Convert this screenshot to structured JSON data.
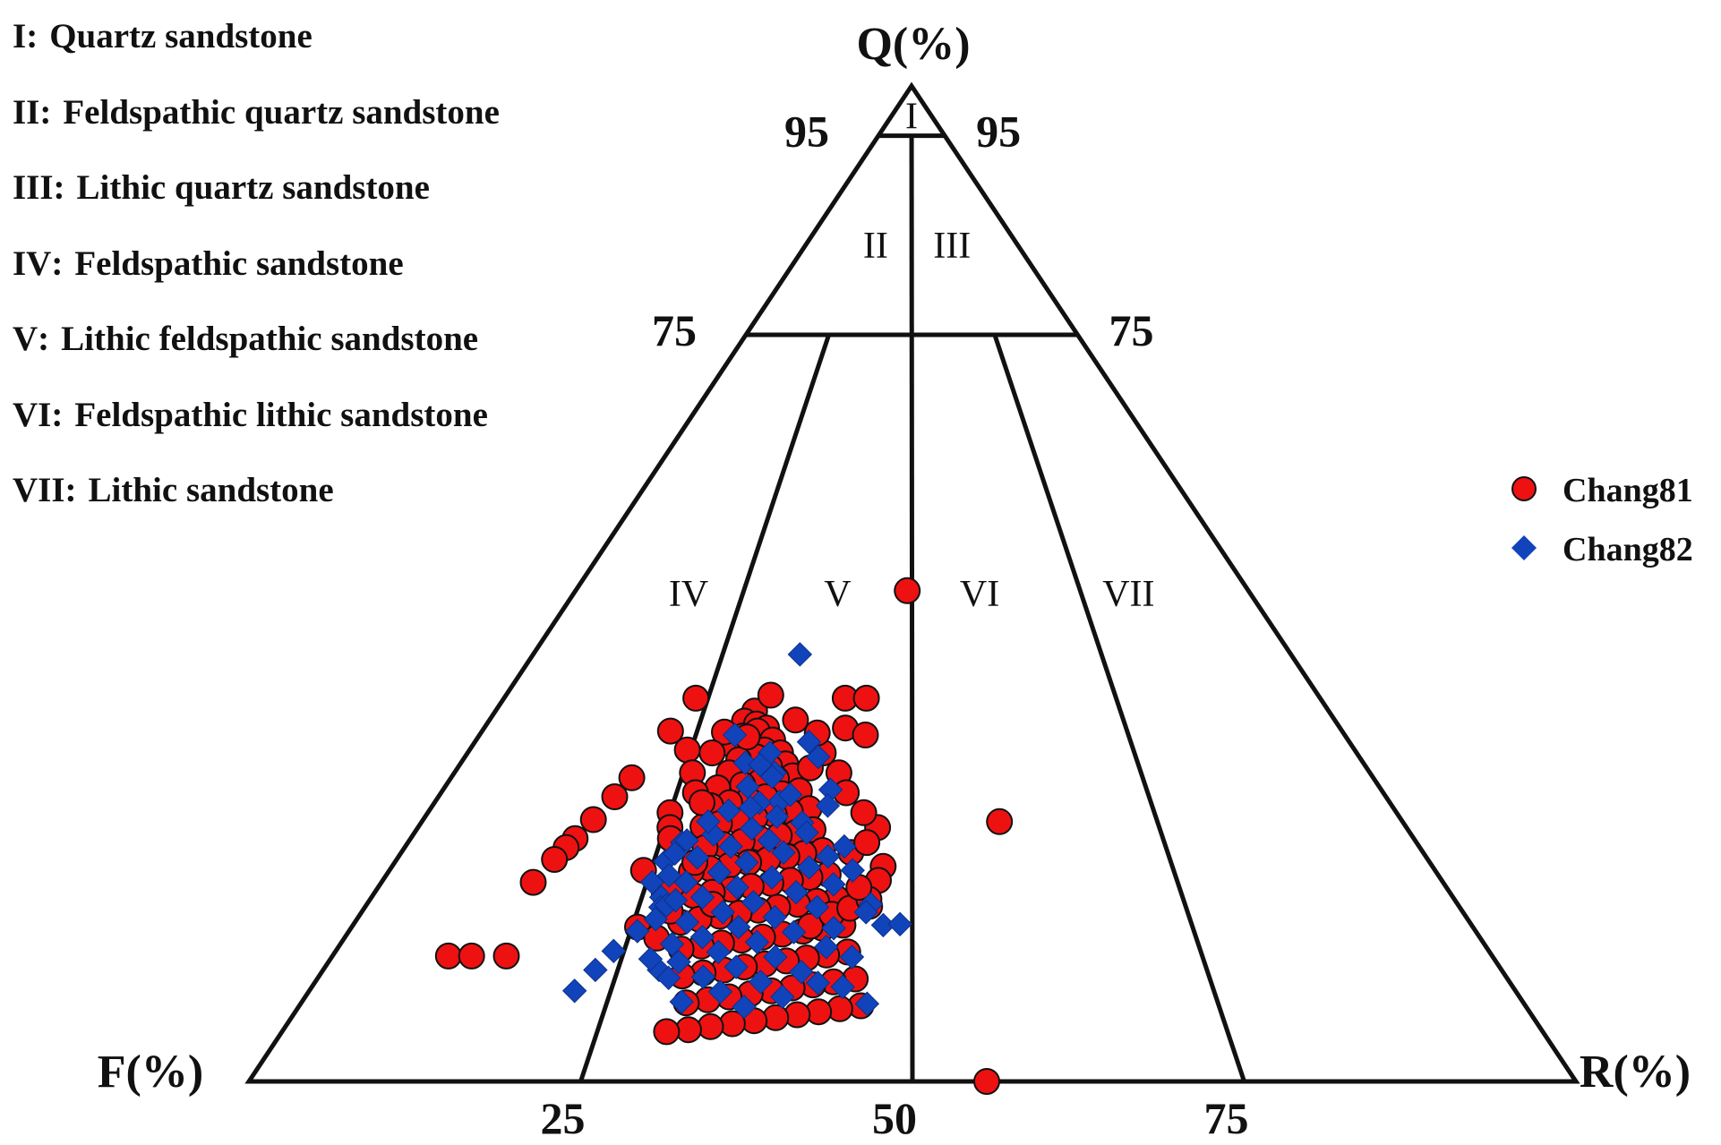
{
  "classification_legend": [
    {
      "code": "I",
      "name": "Quartz sandstone"
    },
    {
      "code": "II",
      "name": "Feldspathic quartz sandstone"
    },
    {
      "code": "III",
      "name": "Lithic quartz sandstone"
    },
    {
      "code": "IV",
      "name": "Feldspathic sandstone"
    },
    {
      "code": "V",
      "name": "Lithic feldspathic sandstone"
    },
    {
      "code": "VI",
      "name": "Feldspathic lithic sandstone"
    },
    {
      "code": "VII",
      "name": "Lithic sandstone"
    }
  ],
  "chart_data": {
    "type": "scatter",
    "subtype": "ternary",
    "title": "",
    "axes": {
      "top": "Q(%)",
      "left": "F(%)",
      "right": "R(%)"
    },
    "q_ticks": [
      {
        "label": "95",
        "value": 95
      },
      {
        "label": "75",
        "value": 75
      }
    ],
    "base_ticks": [
      {
        "label": "25",
        "value": 25
      },
      {
        "label": "50",
        "value": 50
      },
      {
        "label": "75",
        "value": 75
      }
    ],
    "field_labels": [
      {
        "code": "I",
        "q": 97,
        "r": 50
      },
      {
        "code": "II",
        "q": 84,
        "r": 33
      },
      {
        "code": "III",
        "q": 84,
        "r": 69
      },
      {
        "code": "IV",
        "q": 49,
        "r": 17
      },
      {
        "code": "V",
        "q": 49,
        "r": 39
      },
      {
        "code": "VI",
        "q": 49,
        "r": 60
      },
      {
        "code": "VII",
        "q": 49,
        "r": 82
      }
    ],
    "legend_position": "right",
    "series": [
      {
        "name": "Chang81",
        "marker": "circle",
        "color": "#ee1111",
        "points": [
          {
            "q": 37.2,
            "r": 31.1
          },
          {
            "q": 36.2,
            "r": 30.2
          },
          {
            "q": 35.9,
            "r": 31.7
          },
          {
            "q": 35.5,
            "r": 33.0
          },
          {
            "q": 35.2,
            "r": 32.0
          },
          {
            "q": 34.7,
            "r": 30.5
          },
          {
            "q": 34.3,
            "r": 34.0
          },
          {
            "q": 34.0,
            "r": 31.4
          },
          {
            "q": 33.7,
            "r": 29.7
          },
          {
            "q": 33.3,
            "r": 33.3
          },
          {
            "q": 33.0,
            "r": 35.2
          },
          {
            "q": 32.6,
            "r": 32.6
          },
          {
            "q": 32.3,
            "r": 30.7
          },
          {
            "q": 31.9,
            "r": 36.0
          },
          {
            "q": 31.6,
            "r": 34.3
          },
          {
            "q": 31.2,
            "r": 32.0
          },
          {
            "q": 31.0,
            "r": 30.0
          },
          {
            "q": 30.7,
            "r": 37.0
          },
          {
            "q": 30.4,
            "r": 35.3
          },
          {
            "q": 30.1,
            "r": 33.6
          },
          {
            "q": 29.8,
            "r": 31.8
          },
          {
            "q": 29.5,
            "r": 29.2
          },
          {
            "q": 29.2,
            "r": 38.0
          },
          {
            "q": 28.9,
            "r": 36.2
          },
          {
            "q": 28.6,
            "r": 34.5
          },
          {
            "q": 28.3,
            "r": 32.8
          },
          {
            "q": 28.0,
            "r": 30.9
          },
          {
            "q": 27.7,
            "r": 29.0
          },
          {
            "q": 27.4,
            "r": 39.3
          },
          {
            "q": 27.1,
            "r": 37.4
          },
          {
            "q": 26.8,
            "r": 35.8
          },
          {
            "q": 26.5,
            "r": 33.9
          },
          {
            "q": 26.2,
            "r": 32.1
          },
          {
            "q": 25.9,
            "r": 30.4
          },
          {
            "q": 25.6,
            "r": 28.8
          },
          {
            "q": 25.3,
            "r": 40.0
          },
          {
            "q": 25.0,
            "r": 38.3
          },
          {
            "q": 24.7,
            "r": 36.7
          },
          {
            "q": 24.4,
            "r": 34.8
          },
          {
            "q": 24.1,
            "r": 33.1
          },
          {
            "q": 23.8,
            "r": 31.3
          },
          {
            "q": 23.5,
            "r": 29.6
          },
          {
            "q": 23.2,
            "r": 41.2
          },
          {
            "q": 22.9,
            "r": 39.4
          },
          {
            "q": 22.6,
            "r": 37.8
          },
          {
            "q": 22.3,
            "r": 36.0
          },
          {
            "q": 22.0,
            "r": 34.2
          },
          {
            "q": 21.7,
            "r": 32.4
          },
          {
            "q": 21.4,
            "r": 30.6
          },
          {
            "q": 21.1,
            "r": 28.9
          },
          {
            "q": 20.8,
            "r": 42.0
          },
          {
            "q": 20.5,
            "r": 40.3
          },
          {
            "q": 20.2,
            "r": 38.5
          },
          {
            "q": 19.9,
            "r": 36.7
          },
          {
            "q": 19.6,
            "r": 34.9
          },
          {
            "q": 19.3,
            "r": 33.1
          },
          {
            "q": 19.0,
            "r": 31.4
          },
          {
            "q": 18.7,
            "r": 29.7
          },
          {
            "q": 18.4,
            "r": 43.0
          },
          {
            "q": 18.1,
            "r": 41.2
          },
          {
            "q": 17.8,
            "r": 39.5
          },
          {
            "q": 17.5,
            "r": 37.7
          },
          {
            "q": 17.2,
            "r": 36.0
          },
          {
            "q": 16.9,
            "r": 34.3
          },
          {
            "q": 16.6,
            "r": 32.6
          },
          {
            "q": 16.3,
            "r": 30.8
          },
          {
            "q": 16.0,
            "r": 29.2
          },
          {
            "q": 15.7,
            "r": 43.8
          },
          {
            "q": 15.4,
            "r": 42.0
          },
          {
            "q": 15.1,
            "r": 40.3
          },
          {
            "q": 14.8,
            "r": 38.5
          },
          {
            "q": 14.5,
            "r": 36.8
          },
          {
            "q": 14.2,
            "r": 35.0
          },
          {
            "q": 13.9,
            "r": 33.3
          },
          {
            "q": 13.6,
            "r": 31.6
          },
          {
            "q": 13.3,
            "r": 29.9
          },
          {
            "q": 13.0,
            "r": 44.4
          },
          {
            "q": 12.7,
            "r": 42.6
          },
          {
            "q": 12.4,
            "r": 40.9
          },
          {
            "q": 12.1,
            "r": 39.2
          },
          {
            "q": 11.8,
            "r": 37.4
          },
          {
            "q": 11.5,
            "r": 35.7
          },
          {
            "q": 11.2,
            "r": 34.0
          },
          {
            "q": 10.9,
            "r": 32.3
          },
          {
            "q": 10.6,
            "r": 30.6
          },
          {
            "q": 10.3,
            "r": 45.2
          },
          {
            "q": 10.0,
            "r": 43.4
          },
          {
            "q": 9.7,
            "r": 41.7
          },
          {
            "q": 9.4,
            "r": 40.0
          },
          {
            "q": 9.1,
            "r": 38.3
          },
          {
            "q": 8.8,
            "r": 36.6
          },
          {
            "q": 8.5,
            "r": 34.9
          },
          {
            "q": 8.2,
            "r": 33.2
          },
          {
            "q": 7.9,
            "r": 31.5
          },
          {
            "q": 7.6,
            "r": 45.8
          },
          {
            "q": 7.3,
            "r": 44.1
          },
          {
            "q": 7.0,
            "r": 42.4
          },
          {
            "q": 6.7,
            "r": 40.7
          },
          {
            "q": 6.4,
            "r": 39.0
          },
          {
            "q": 6.1,
            "r": 37.3
          },
          {
            "q": 5.8,
            "r": 35.6
          },
          {
            "q": 5.5,
            "r": 33.9
          },
          {
            "q": 5.2,
            "r": 32.2
          },
          {
            "q": 5.0,
            "r": 30.5
          },
          {
            "q": 49.3,
            "r": 49.3
          },
          {
            "q": 26.1,
            "r": 58.9
          },
          {
            "q": 0.0,
            "r": 55.6
          },
          {
            "q": 38.5,
            "r": 41.8
          },
          {
            "q": 38.5,
            "r": 44.4
          },
          {
            "q": 35.5,
            "r": 42.2
          },
          {
            "q": 34.8,
            "r": 44.6
          },
          {
            "q": 38.8,
            "r": 32.6
          },
          {
            "q": 35.1,
            "r": 28.2
          },
          {
            "q": 34.6,
            "r": 31.0
          },
          {
            "q": 33.3,
            "r": 24.6
          },
          {
            "q": 21.6,
            "r": 47.2
          },
          {
            "q": 20.2,
            "r": 46.8
          },
          {
            "q": 17.6,
            "r": 46.1
          },
          {
            "q": 38.5,
            "r": 23.5
          },
          {
            "q": 35.2,
            "r": 21.9
          },
          {
            "q": 30.5,
            "r": 19.6
          },
          {
            "q": 28.6,
            "r": 18.6
          },
          {
            "q": 26.3,
            "r": 17.4
          },
          {
            "q": 24.4,
            "r": 16.4
          },
          {
            "q": 23.5,
            "r": 15.9
          },
          {
            "q": 22.3,
            "r": 15.3
          },
          {
            "q": 20.0,
            "r": 14.3
          },
          {
            "q": 12.6,
            "r": 10.0
          },
          {
            "q": 12.6,
            "r": 12.0
          },
          {
            "q": 12.6,
            "r": 15.0
          },
          {
            "q": 27.0,
            "r": 25.0
          },
          {
            "q": 25.5,
            "r": 25.5
          },
          {
            "q": 24.4,
            "r": 25.9
          },
          {
            "q": 21.2,
            "r": 24.3
          },
          {
            "q": 18.8,
            "r": 27.0
          },
          {
            "q": 17.1,
            "r": 28.0
          },
          {
            "q": 15.5,
            "r": 25.5
          },
          {
            "q": 14.4,
            "r": 27.5
          },
          {
            "q": 31.0,
            "r": 26.0
          },
          {
            "q": 29.0,
            "r": 27.0
          },
          {
            "q": 33.0,
            "r": 27.5
          },
          {
            "q": 28.0,
            "r": 28.0
          },
          {
            "q": 19.7,
            "r": 27.5
          },
          {
            "q": 22.0,
            "r": 29.0
          },
          {
            "q": 17.8,
            "r": 31.7
          },
          {
            "q": 15.6,
            "r": 40.9
          },
          {
            "q": 16.8,
            "r": 42.7
          },
          {
            "q": 17.4,
            "r": 44.3
          },
          {
            "q": 18.3,
            "r": 46.0
          },
          {
            "q": 19.5,
            "r": 45.0
          },
          {
            "q": 23.0,
            "r": 44.0
          },
          {
            "q": 25.5,
            "r": 46.5
          },
          {
            "q": 27.0,
            "r": 45.0
          },
          {
            "q": 31.0,
            "r": 42.0
          },
          {
            "q": 33.0,
            "r": 40.0
          },
          {
            "q": 36.3,
            "r": 36.2
          },
          {
            "q": 35.0,
            "r": 39.0
          },
          {
            "q": 31.5,
            "r": 38.8
          },
          {
            "q": 29.0,
            "r": 43.0
          },
          {
            "q": 24.0,
            "r": 45.5
          }
        ]
      },
      {
        "name": "Chang82",
        "marker": "diamond",
        "color": "#1144bb",
        "points": [
          {
            "q": 42.9,
            "r": 35.2
          },
          {
            "q": 34.8,
            "r": 29.5
          },
          {
            "q": 34.1,
            "r": 38.2
          },
          {
            "q": 32.6,
            "r": 39.5
          },
          {
            "q": 29.3,
            "r": 41.3
          },
          {
            "q": 27.7,
            "r": 41.2
          },
          {
            "q": 23.6,
            "r": 43.3
          },
          {
            "q": 21.2,
            "r": 44.3
          },
          {
            "q": 15.4,
            "r": 43.0
          },
          {
            "q": 15.7,
            "r": 47.4
          },
          {
            "q": 15.8,
            "r": 48.9
          },
          {
            "q": 17.8,
            "r": 46.2
          },
          {
            "q": 18.5,
            "r": 26.8
          },
          {
            "q": 17.5,
            "r": 27.0
          },
          {
            "q": 15.1,
            "r": 25.6
          },
          {
            "q": 13.1,
            "r": 24.1
          },
          {
            "q": 11.2,
            "r": 28.5
          },
          {
            "q": 11.2,
            "r": 23.1
          },
          {
            "q": 9.1,
            "r": 22.0
          },
          {
            "q": 7.8,
            "r": 46.3
          },
          {
            "q": 24.0,
            "r": 27.2
          },
          {
            "q": 22.1,
            "r": 26.1
          },
          {
            "q": 20.0,
            "r": 25.5
          },
          {
            "q": 17.7,
            "r": 27.5
          },
          {
            "q": 32.0,
            "r": 31.5
          },
          {
            "q": 28.1,
            "r": 36.1
          },
          {
            "q": 31.0,
            "r": 35.0
          },
          {
            "q": 33.0,
            "r": 34.0
          },
          {
            "q": 31.8,
            "r": 33.2
          },
          {
            "q": 30.6,
            "r": 34.8
          },
          {
            "q": 29.6,
            "r": 32.4
          },
          {
            "q": 28.8,
            "r": 37.1
          },
          {
            "q": 28.0,
            "r": 34.0
          },
          {
            "q": 27.2,
            "r": 31.0
          },
          {
            "q": 26.6,
            "r": 36.1
          },
          {
            "q": 26.0,
            "r": 38.8
          },
          {
            "q": 25.4,
            "r": 33.8
          },
          {
            "q": 24.8,
            "r": 30.1
          },
          {
            "q": 24.2,
            "r": 35.8
          },
          {
            "q": 23.6,
            "r": 32.1
          },
          {
            "q": 23.0,
            "r": 37.4
          },
          {
            "q": 22.5,
            "r": 29.1
          },
          {
            "q": 22.0,
            "r": 34.0
          },
          {
            "q": 21.5,
            "r": 40.1
          },
          {
            "q": 21.0,
            "r": 31.6
          },
          {
            "q": 20.5,
            "r": 36.7
          },
          {
            "q": 20.0,
            "r": 28.7
          },
          {
            "q": 19.5,
            "r": 33.6
          },
          {
            "q": 19.0,
            "r": 39.2
          },
          {
            "q": 18.5,
            "r": 30.6
          },
          {
            "q": 18.0,
            "r": 35.4
          },
          {
            "q": 17.5,
            "r": 41.3
          },
          {
            "q": 17.0,
            "r": 32.8
          },
          {
            "q": 16.5,
            "r": 37.6
          },
          {
            "q": 16.0,
            "r": 29.8
          },
          {
            "q": 15.5,
            "r": 34.5
          },
          {
            "q": 15.0,
            "r": 39.5
          },
          {
            "q": 14.5,
            "r": 31.5
          },
          {
            "q": 14.0,
            "r": 36.4
          },
          {
            "q": 13.5,
            "r": 42.5
          },
          {
            "q": 13.0,
            "r": 33.2
          },
          {
            "q": 12.5,
            "r": 38.2
          },
          {
            "q": 12.0,
            "r": 30.0
          },
          {
            "q": 11.5,
            "r": 35.0
          },
          {
            "q": 11.0,
            "r": 40.6
          },
          {
            "q": 10.5,
            "r": 32.4
          },
          {
            "q": 10.0,
            "r": 37.3
          },
          {
            "q": 9.5,
            "r": 44.2
          },
          {
            "q": 9.0,
            "r": 34.1
          },
          {
            "q": 8.5,
            "r": 39.3
          },
          {
            "q": 8.0,
            "r": 31.1
          },
          {
            "q": 7.5,
            "r": 36.3
          },
          {
            "q": 24.2,
            "r": 27.6
          },
          {
            "q": 22.9,
            "r": 26.8
          },
          {
            "q": 20.7,
            "r": 26.9
          },
          {
            "q": 18.2,
            "r": 28.2
          },
          {
            "q": 16.3,
            "r": 26.9
          },
          {
            "q": 13.8,
            "r": 29.0
          },
          {
            "q": 12.3,
            "r": 27.5
          },
          {
            "q": 10.4,
            "r": 29.5
          },
          {
            "q": 26.1,
            "r": 29.2
          },
          {
            "q": 27.5,
            "r": 33.2
          },
          {
            "q": 25.0,
            "r": 39.4
          },
          {
            "q": 22.6,
            "r": 41.8
          },
          {
            "q": 19.8,
            "r": 42.6
          },
          {
            "q": 17.0,
            "r": 45.8
          },
          {
            "q": 12.5,
            "r": 44.8
          },
          {
            "q": 9.9,
            "r": 42.1
          }
        ]
      }
    ]
  }
}
